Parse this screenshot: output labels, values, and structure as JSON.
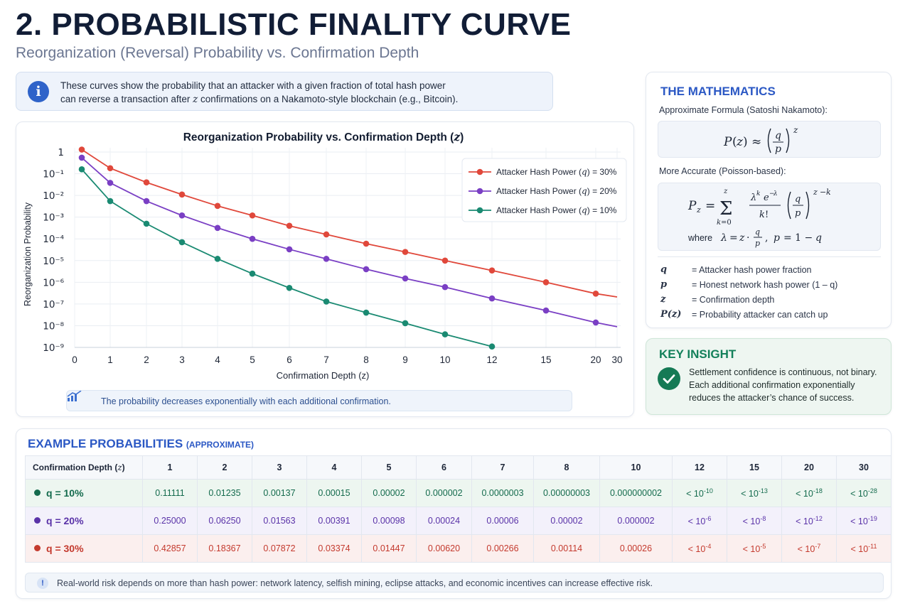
{
  "page": {
    "title": "2. PROBABILISTIC FINALITY CURVE",
    "subtitle": "Reorganization (Reversal) Probability vs. Confirmation Depth"
  },
  "info_banner": {
    "icon": "info-icon",
    "line1": "These curves show the probability that an attacker with a given fraction of total hash power",
    "line2_pre": "can reverse a transaction after ",
    "line2_var": "z",
    "line2_post": " confirmations on a Nakamoto-style blockchain (e.g., Bitcoin)."
  },
  "chart_data": {
    "type": "line",
    "title": "Reorganization Probability vs. Confirmation Depth (z)",
    "xlabel": "Confirmation Depth (z)",
    "ylabel": "Reorganization Probability",
    "y_scale": "log",
    "ylim_exp": [
      -9,
      0
    ],
    "y_tick_labels": [
      "10⁻⁹",
      "10⁻⁸",
      "10⁻⁷",
      "10⁻⁶",
      "10⁻⁵",
      "10⁻⁴",
      "10⁻³",
      "10⁻²",
      "10⁻¹",
      "1"
    ],
    "x_ticks": [
      0,
      1,
      2,
      3,
      4,
      5,
      6,
      7,
      8,
      9,
      10,
      12,
      15,
      20,
      30
    ],
    "grid": true,
    "legend_position": "top-right",
    "series": [
      {
        "name": "Attacker Hash Power (q) = 30%",
        "color": "#e0483b",
        "points": [
          [
            0.2,
            1.3
          ],
          [
            1,
            0.18
          ],
          [
            2,
            0.04
          ],
          [
            3,
            0.011
          ],
          [
            4,
            0.0033
          ],
          [
            5,
            0.0012
          ],
          [
            6,
            0.0004
          ],
          [
            7,
            0.00016
          ],
          [
            8,
            6e-05
          ],
          [
            9,
            2.5e-05
          ],
          [
            10,
            1e-05
          ],
          [
            12,
            3.5e-06
          ],
          [
            15,
            1e-06
          ],
          [
            20,
            3e-07
          ]
        ],
        "line_end": [
          30,
          2.1e-07
        ]
      },
      {
        "name": "Attacker Hash Power (q) = 20%",
        "color": "#7a3fc4",
        "points": [
          [
            0.2,
            0.55
          ],
          [
            1,
            0.038
          ],
          [
            2,
            0.0055
          ],
          [
            3,
            0.0012
          ],
          [
            4,
            0.00032
          ],
          [
            5,
            0.0001
          ],
          [
            6,
            3.3e-05
          ],
          [
            7,
            1.2e-05
          ],
          [
            8,
            4e-06
          ],
          [
            9,
            1.5e-06
          ],
          [
            10,
            6e-07
          ],
          [
            12,
            1.8e-07
          ],
          [
            15,
            5e-08
          ],
          [
            20,
            1.4e-08
          ]
        ],
        "line_end": [
          30,
          9e-09
        ]
      },
      {
        "name": "Attacker Hash Power (q) = 10%",
        "color": "#1a8a72",
        "points": [
          [
            0.2,
            0.16
          ],
          [
            1,
            0.0055
          ],
          [
            2,
            0.0005
          ],
          [
            3,
            7e-05
          ],
          [
            4,
            1.2e-05
          ],
          [
            5,
            2.5e-06
          ],
          [
            6,
            5.5e-07
          ],
          [
            7,
            1.3e-07
          ],
          [
            8,
            4e-08
          ],
          [
            9,
            1.3e-08
          ],
          [
            10,
            4e-09
          ],
          [
            12,
            1.1e-09
          ]
        ],
        "line_end": null
      }
    ],
    "note": "The probability decreases exponentially with each additional confirmation."
  },
  "math": {
    "title": "THE MATHEMATICS",
    "label_approx": "Approximate Formula (Satoshi Nakamoto):",
    "label_accurate": "More Accurate (Poisson-based):",
    "where_label": "where",
    "variables": [
      {
        "symbol": "q",
        "definition": "= Attacker hash power fraction"
      },
      {
        "symbol": "p",
        "definition": "= Honest network hash power (1 – q)"
      },
      {
        "symbol": "z",
        "definition": "= Confirmation depth"
      },
      {
        "symbol": "P(z)",
        "definition": "= Probability attacker can catch up"
      }
    ]
  },
  "insight": {
    "title": "KEY INSIGHT",
    "icon": "checkmark-icon",
    "line1": "Settlement confidence is continuous, not binary.",
    "line2": "Each additional confirmation exponentially",
    "line3": "reduces the attacker’s chance of success."
  },
  "table": {
    "title": "EXAMPLE PROBABILITIES",
    "title_small": "(APPROXIMATE)",
    "header_label": "Confirmation Depth (z)",
    "columns": [
      "1",
      "2",
      "3",
      "4",
      "5",
      "6",
      "7",
      "8",
      "10",
      "12",
      "15",
      "20",
      "30"
    ],
    "rows": [
      {
        "label": "q = 10%",
        "color": "#146b4d",
        "values": [
          "0.11111",
          "0.01235",
          "0.00137",
          "0.00015",
          "0.00002",
          "0.000002",
          "0.0000003",
          "0.00000003",
          "0.000000002"
        ],
        "bounds": [
          "-10",
          "-13",
          "-18",
          "-28"
        ]
      },
      {
        "label": "q = 20%",
        "color": "#5a33a8",
        "values": [
          "0.25000",
          "0.06250",
          "0.01563",
          "0.00391",
          "0.00098",
          "0.00024",
          "0.00006",
          "0.00002",
          "0.000002"
        ],
        "bounds": [
          "-6",
          "-8",
          "-12",
          "-19"
        ]
      },
      {
        "label": "q = 30%",
        "color": "#c43a2e",
        "values": [
          "0.42857",
          "0.18367",
          "0.07872",
          "0.03374",
          "0.01447",
          "0.00620",
          "0.00266",
          "0.00114",
          "0.00026"
        ],
        "bounds": [
          "-4",
          "-5",
          "-7",
          "-11"
        ]
      }
    ],
    "bound_prefix": "< 10",
    "footnote": "Real-world risk depends on more than hash power: network latency, selfish mining, eclipse attacks, and economic incentives can increase effective risk."
  }
}
